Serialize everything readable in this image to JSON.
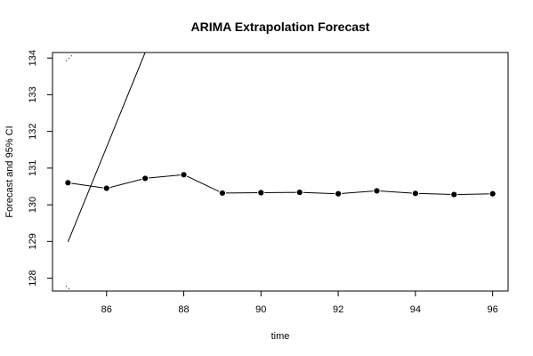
{
  "chart_data": {
    "type": "line",
    "title": "ARIMA Extrapolation Forecast",
    "xlabel": "time",
    "ylabel": "Forecast and 95% CI",
    "xlim": [
      84.6,
      96.4
    ],
    "ylim": [
      134.15,
      127.65
    ],
    "y_axis_inverted": true,
    "grid": false,
    "xticks": [
      "86",
      "88",
      "90",
      "92",
      "94",
      "96"
    ],
    "yticks": [
      "128",
      "129",
      "130",
      "131",
      "132",
      "133",
      "134"
    ],
    "series": [
      {
        "style": "line-with-filled-points",
        "x": [
          85,
          86,
          87,
          88,
          89,
          90,
          91,
          92,
          93,
          94,
          95,
          96
        ],
        "y": [
          130.6,
          130.45,
          130.72,
          130.82,
          130.32,
          130.33,
          130.34,
          130.3,
          130.38,
          130.31,
          130.28,
          130.3
        ]
      },
      {
        "style": "solid-line",
        "x": [
          85,
          87
        ],
        "y": [
          128.99,
          134.15
        ]
      },
      {
        "style": "dotted",
        "x": [
          84.95,
          85.15
        ],
        "y": [
          127.79,
          127.59
        ]
      },
      {
        "style": "dotted",
        "x": [
          84.95,
          85.15
        ],
        "y": [
          133.92,
          134.11
        ]
      }
    ]
  },
  "colors": {
    "ink": "#000000",
    "background": "#ffffff"
  }
}
